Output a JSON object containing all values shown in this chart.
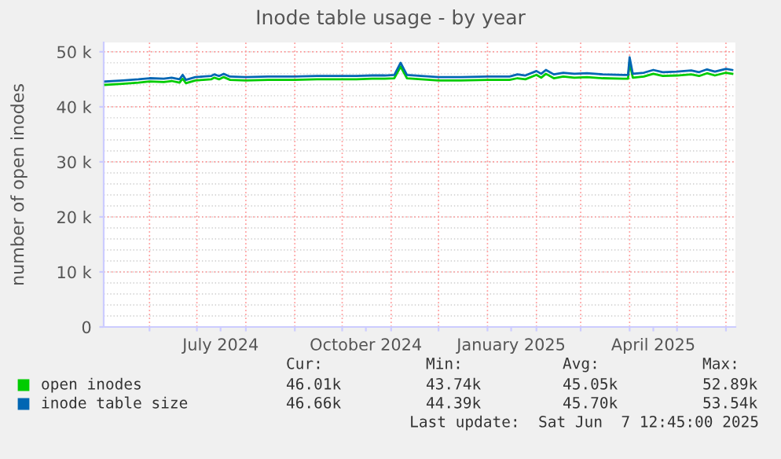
{
  "chart_data": {
    "type": "line",
    "title": "Inode table usage - by year",
    "ylabel": "number of open inodes",
    "xlim": [
      "2024-05-03",
      "2025-06-07"
    ],
    "xticks": [
      {
        "value": "2024-06-01",
        "label": null
      },
      {
        "value": "2024-07-01",
        "label": null
      },
      {
        "value": "2024-07-16",
        "label": "July 2024"
      },
      {
        "value": "2024-08-01",
        "label": null
      },
      {
        "value": "2024-09-01",
        "label": null
      },
      {
        "value": "2024-10-01",
        "label": null
      },
      {
        "value": "2024-10-16",
        "label": "October 2024"
      },
      {
        "value": "2024-11-01",
        "label": null
      },
      {
        "value": "2024-12-01",
        "label": null
      },
      {
        "value": "2025-01-01",
        "label": null
      },
      {
        "value": "2025-01-16",
        "label": "January 2025"
      },
      {
        "value": "2025-02-01",
        "label": null
      },
      {
        "value": "2025-03-01",
        "label": null
      },
      {
        "value": "2025-04-01",
        "label": null
      },
      {
        "value": "2025-04-16",
        "label": "April 2025"
      },
      {
        "value": "2025-05-01",
        "label": null
      },
      {
        "value": "2025-06-01",
        "label": null
      }
    ],
    "ylim": [
      0,
      51.7
    ],
    "yticks": [
      0,
      {
        "value": 10,
        "label": "10 k"
      },
      {
        "value": 20,
        "label": "20 k"
      },
      {
        "value": 30,
        "label": "30 k"
      },
      {
        "value": 40,
        "label": "40 k"
      },
      {
        "value": 50,
        "label": "50 k"
      }
    ],
    "grid": true,
    "legend": "bottom left",
    "x": [
      "2024-05-04",
      "2024-05-15",
      "2024-05-25",
      "2024-06-01",
      "2024-06-10",
      "2024-06-15",
      "2024-06-20",
      "2024-06-22",
      "2024-06-24",
      "2024-06-30",
      "2024-07-05",
      "2024-07-10",
      "2024-07-12",
      "2024-07-15",
      "2024-07-18",
      "2024-07-22",
      "2024-08-01",
      "2024-08-15",
      "2024-09-01",
      "2024-09-15",
      "2024-10-01",
      "2024-10-10",
      "2024-10-20",
      "2024-10-28",
      "2024-11-03",
      "2024-11-07",
      "2024-11-11",
      "2024-11-20",
      "2024-12-01",
      "2024-12-15",
      "2025-01-01",
      "2025-01-15",
      "2025-01-20",
      "2025-01-25",
      "2025-02-01",
      "2025-02-04",
      "2025-02-07",
      "2025-02-12",
      "2025-02-18",
      "2025-02-25",
      "2025-03-05",
      "2025-03-15",
      "2025-03-28",
      "2025-03-31",
      "2025-04-01",
      "2025-04-03",
      "2025-04-10",
      "2025-04-16",
      "2025-04-22",
      "2025-05-01",
      "2025-05-10",
      "2025-05-15",
      "2025-05-20",
      "2025-05-25",
      "2025-06-01",
      "2025-06-05"
    ],
    "series": [
      {
        "name": "open inodes",
        "color": "#00cc00",
        "values": [
          44.0,
          44.2,
          44.4,
          44.6,
          44.5,
          44.7,
          44.4,
          45.1,
          44.3,
          44.8,
          44.9,
          45.0,
          45.3,
          45.0,
          45.4,
          44.9,
          44.8,
          44.9,
          44.9,
          45.0,
          45.0,
          45.0,
          45.1,
          45.1,
          45.2,
          47.3,
          45.2,
          45.0,
          44.8,
          44.8,
          44.9,
          44.9,
          45.2,
          45.0,
          45.8,
          45.3,
          46.0,
          45.2,
          45.5,
          45.3,
          45.4,
          45.2,
          45.1,
          45.1,
          48.2,
          45.3,
          45.5,
          46.0,
          45.6,
          45.7,
          45.9,
          45.6,
          46.1,
          45.7,
          46.2,
          46.0
        ]
      },
      {
        "name": "inode table size",
        "color": "#0066b3",
        "values": [
          44.6,
          44.8,
          45.0,
          45.2,
          45.1,
          45.3,
          45.0,
          45.8,
          44.9,
          45.4,
          45.5,
          45.6,
          45.9,
          45.6,
          46.0,
          45.5,
          45.4,
          45.5,
          45.5,
          45.6,
          45.6,
          45.6,
          45.7,
          45.7,
          45.8,
          48.0,
          45.8,
          45.6,
          45.4,
          45.4,
          45.5,
          45.5,
          45.9,
          45.7,
          46.5,
          46.0,
          46.7,
          45.9,
          46.2,
          46.0,
          46.1,
          45.9,
          45.8,
          45.8,
          49.0,
          46.0,
          46.2,
          46.7,
          46.3,
          46.4,
          46.6,
          46.3,
          46.8,
          46.4,
          46.9,
          46.7
        ]
      }
    ],
    "annotations": [
      "Cur:",
      "Min:",
      "Avg:",
      "Max:",
      "46.01k",
      "43.74k",
      "45.05k",
      "52.89k",
      "46.66k",
      "44.39k",
      "45.70k",
      "53.54k",
      "Last update:  Sat Jun  7 12:45:00 2025"
    ]
  }
}
